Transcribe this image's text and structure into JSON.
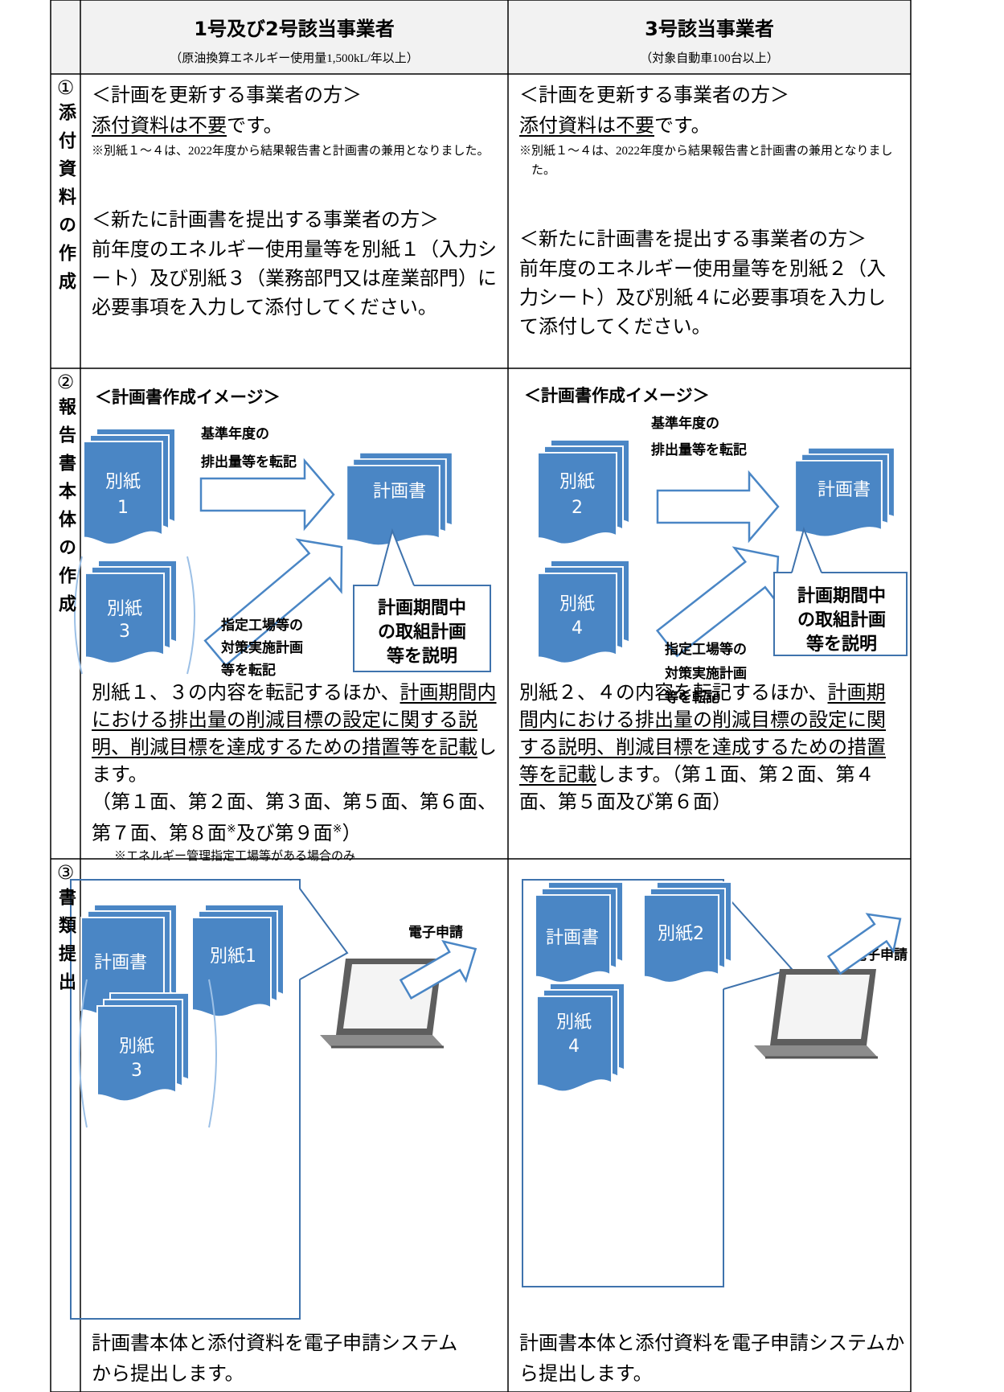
{
  "table": {
    "header": [
      {
        "title": "1号及び2号該当事業者",
        "subtitle": "（原油換算エネルギー使用量1,500kL/年以上）"
      },
      {
        "title": "3号該当事業者",
        "subtitle": "（対象自動車100台以上）"
      }
    ],
    "rows": [
      {
        "number": "①",
        "label": "添付資料の作成",
        "cells": [
          {
            "heading_update": "＜計画を更新する事業者の方＞",
            "attachment": [
              "添付資料は不要",
              "です。"
            ],
            "note": "※別紙１～４は、2022年度から結果報告書と計画書の兼用となりました。",
            "heading_new": "＜新たに計画書を提出する事業者の方＞",
            "body": "前年度のエネルギー使用量等を別紙１（入力シート）及び別紙３（業務部門又は産業部門）に必要事項を入力して添付してください。"
          },
          {
            "heading_update": "＜計画を更新する事業者の方＞",
            "attachment": [
              "添付資料は不要",
              "です。"
            ],
            "note": "※別紙１～４は、2022年度から結果報告書と計画書の兼用となりました。",
            "heading_new": "＜新たに計画書を提出する事業者の方＞",
            "body": "前年度のエネルギー使用量等を別紙２（入力シート）及び別紙４に必要事項を入力して添付してください。"
          }
        ]
      },
      {
        "number": "②",
        "label": "報告書本体の作成",
        "cells": [
          {
            "diagram": {
              "title": "＜計画書作成イメージ＞",
              "sheet_a": [
                "別紙",
                "1"
              ],
              "sheet_b": [
                "別紙",
                "3"
              ],
              "plan": "計画書",
              "transfer_a": [
                "基準年度の",
                "排出量等を転記"
              ],
              "transfer_b": [
                "指定工場等の",
                "対策実施計画",
                "等を転記"
              ],
              "callout": [
                "計画期間中",
                "の取組計画",
                "等を説明"
              ]
            },
            "text": [
              "別紙１、３の内容を転記するほか、",
              "計画期間内における排出量の削減目標の設定に関する説明、削減目標を達成するための措置等を記載",
              "します。"
            ],
            "pages": [
              "（第１面、第２面、第３面、第５面、第６面、第７面、第８面",
              "※",
              "及び第９面",
              "※",
              "）"
            ],
            "note": "※エネルギー管理指定工場等がある場合のみ"
          },
          {
            "diagram": {
              "title": "＜計画書作成イメージ＞",
              "sheet_a": [
                "別紙",
                "2"
              ],
              "sheet_b": [
                "別紙",
                "4"
              ],
              "plan": "計画書",
              "transfer_a": [
                "基準年度の",
                "排出量等を転記"
              ],
              "transfer_b": [
                "指定工場等の",
                "対策実施計画",
                "等を転記"
              ],
              "callout": [
                "計画期間中",
                "の取組計画",
                "等を説明"
              ]
            },
            "text": [
              "別紙２、４の内容を転記するほか、",
              "計画期間内における排出量の削減目標の設定に関する説明、削減目標を達成するための措置等を記載",
              "します。（第１面、第２面、第４面、第５面及び第６面）"
            ]
          }
        ]
      },
      {
        "number": "③",
        "label": "書類提出",
        "cells": [
          {
            "diagram": {
              "plan": "計画書",
              "sheet_a": "別紙1",
              "sheet_b": [
                "別紙",
                "3"
              ],
              "submit": "電子申請"
            },
            "text": "計画書本体と添付資料を電子申請システムから提出します。"
          },
          {
            "diagram": {
              "plan": "計画書",
              "sheet_a": "別紙2",
              "sheet_b": [
                "別紙",
                "4"
              ],
              "submit": "電子申請"
            },
            "text": "計画書本体と添付資料を電子申請システムから提出します。"
          }
        ]
      }
    ]
  }
}
